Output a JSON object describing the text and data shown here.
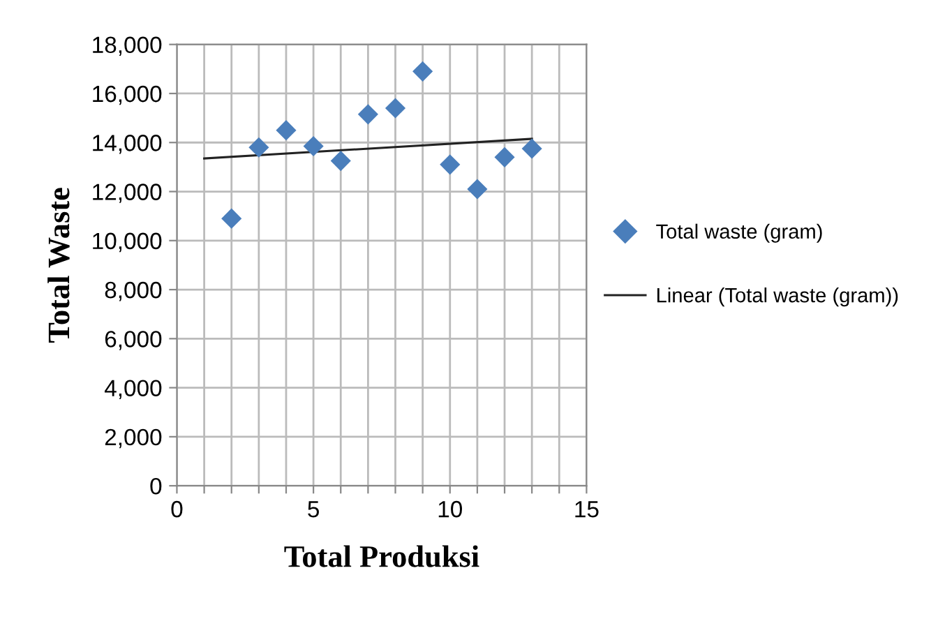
{
  "chart_data": {
    "type": "scatter",
    "xlabel": "Total Produksi",
    "ylabel": "Total Waste",
    "series": [
      {
        "name": "Total waste (gram)",
        "color": "#4a7ebb",
        "marker": "diamond",
        "x": [
          2,
          3,
          4,
          5,
          6,
          7,
          8,
          9,
          10,
          11,
          12,
          13
        ],
        "values": [
          10900,
          13800,
          14500,
          13850,
          13250,
          15150,
          15400,
          16900,
          13100,
          12100,
          13400,
          13750
        ]
      },
      {
        "name": "Linear (Total waste (gram))",
        "type": "line",
        "color": "#222222",
        "marker": "none",
        "line_style": "solid",
        "x": [
          1,
          13
        ],
        "values": [
          13350,
          14150
        ]
      }
    ],
    "xlim": [
      0,
      15
    ],
    "xticks": [
      0,
      5,
      10,
      15,
      {
        "value": 1,
        "label": null
      },
      {
        "value": 2,
        "label": null
      },
      {
        "value": 3,
        "label": null
      },
      {
        "value": 4,
        "label": null
      },
      {
        "value": 6,
        "label": null
      },
      {
        "value": 7,
        "label": null
      },
      {
        "value": 8,
        "label": null
      },
      {
        "value": 9,
        "label": null
      },
      {
        "value": 11,
        "label": null
      },
      {
        "value": 12,
        "label": null
      },
      {
        "value": 13,
        "label": null
      },
      {
        "value": 14,
        "label": null
      }
    ],
    "ylim": [
      0,
      18000
    ],
    "yticks": [
      {
        "value": 0,
        "label": "0"
      },
      {
        "value": 2000,
        "label": "2,000"
      },
      {
        "value": 4000,
        "label": "4,000"
      },
      {
        "value": 6000,
        "label": "6,000"
      },
      {
        "value": 8000,
        "label": "8,000"
      },
      {
        "value": 10000,
        "label": "10,000"
      },
      {
        "value": 12000,
        "label": "12,000"
      },
      {
        "value": 14000,
        "label": "14,000"
      },
      {
        "value": 16000,
        "label": "16,000"
      },
      {
        "value": 18000,
        "label": "18,000"
      }
    ],
    "grid": true,
    "legend": "right"
  }
}
